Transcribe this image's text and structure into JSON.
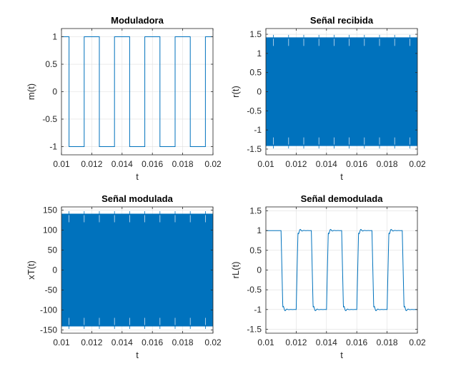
{
  "chart_data": [
    {
      "type": "line",
      "title": "Moduladora",
      "xlabel": "t",
      "ylabel": "m(t)",
      "xlim": [
        0.01,
        0.02
      ],
      "ylim": [
        -1.15,
        1.15
      ],
      "xticks": [
        0.01,
        0.012,
        0.014,
        0.016,
        0.018,
        0.02
      ],
      "xtick_labels": [
        "0.01",
        "0.012",
        "0.014",
        "0.016",
        "0.018",
        "0.02"
      ],
      "yticks": [
        -1,
        -0.5,
        0,
        0.5,
        1
      ],
      "ytick_labels": [
        "-1",
        "-0.5",
        "0",
        "0.5",
        "1"
      ],
      "grid": true,
      "color": "#0072BD",
      "series": [
        {
          "x": [
            0.01,
            0.0105,
            0.0105,
            0.0115,
            0.0115,
            0.0125,
            0.0125,
            0.0135,
            0.0135,
            0.0145,
            0.0145,
            0.0155,
            0.0155,
            0.0165,
            0.0165,
            0.0175,
            0.0175,
            0.0185,
            0.0185,
            0.0195,
            0.0195,
            0.02
          ],
          "y": [
            1,
            1,
            -1,
            -1,
            1,
            1,
            -1,
            -1,
            1,
            1,
            -1,
            -1,
            1,
            1,
            -1,
            -1,
            1,
            1,
            -1,
            -1,
            1,
            1
          ]
        }
      ]
    },
    {
      "type": "line",
      "title": "Señal recibida",
      "xlabel": "t",
      "ylabel": "r(t)",
      "xlim": [
        0.01,
        0.02
      ],
      "ylim": [
        -1.65,
        1.65
      ],
      "xticks": [
        0.01,
        0.012,
        0.014,
        0.016,
        0.018,
        0.02
      ],
      "xtick_labels": [
        "0.01",
        "0.012",
        "0.014",
        "0.016",
        "0.018",
        "0.02"
      ],
      "yticks": [
        -1.5,
        -1,
        -0.5,
        0,
        0.5,
        1,
        1.5
      ],
      "ytick_labels": [
        "-1.5",
        "-1",
        "-0.5",
        "0",
        "0.5",
        "1",
        "1.5"
      ],
      "grid": true,
      "color": "#0072BD",
      "envelope": {
        "upper": 1.42,
        "lower": -1.42
      },
      "series": [
        {
          "x": [
            0.01,
            0.0105,
            0.0115,
            0.0125,
            0.0135,
            0.0145,
            0.0155,
            0.0165,
            0.0175,
            0.0185,
            0.0195,
            0.02
          ],
          "y_max": [
            1.42,
            1.42,
            1.42,
            1.42,
            1.42,
            1.42,
            1.42,
            1.42,
            1.42,
            1.42,
            1.42,
            1.42
          ],
          "y_min": [
            -1.42,
            -1.42,
            -1.42,
            -1.42,
            -1.42,
            -1.42,
            -1.42,
            -1.42,
            -1.42,
            -1.42,
            -1.42,
            -1.42
          ]
        }
      ]
    },
    {
      "type": "line",
      "title": "Señal modulada",
      "xlabel": "t",
      "ylabel": "xT(t)",
      "xlim": [
        0.01,
        0.02
      ],
      "ylim": [
        -158,
        158
      ],
      "xticks": [
        0.01,
        0.012,
        0.014,
        0.016,
        0.018,
        0.02
      ],
      "xtick_labels": [
        "0.01",
        "0.012",
        "0.014",
        "0.016",
        "0.018",
        "0.02"
      ],
      "yticks": [
        -150,
        -100,
        -50,
        0,
        50,
        100,
        150
      ],
      "ytick_labels": [
        "-150",
        "-100",
        "-50",
        "0",
        "50",
        "100",
        "150"
      ],
      "grid": true,
      "color": "#0072BD",
      "envelope": {
        "upper": 141,
        "lower": -141
      },
      "series": [
        {
          "x": [
            0.01,
            0.0105,
            0.0115,
            0.0125,
            0.0135,
            0.0145,
            0.0155,
            0.0165,
            0.0175,
            0.0185,
            0.0195,
            0.02
          ],
          "y_max": [
            141,
            141,
            141,
            141,
            141,
            141,
            141,
            141,
            141,
            141,
            141,
            141
          ],
          "y_min": [
            -141,
            -141,
            -141,
            -141,
            -141,
            -141,
            -141,
            -141,
            -141,
            -141,
            -141,
            -141
          ]
        }
      ]
    },
    {
      "type": "line",
      "title": "Señal demodulada",
      "xlabel": "t",
      "ylabel": "rL(t)",
      "xlim": [
        0.01,
        0.02
      ],
      "ylim": [
        -1.6,
        1.6
      ],
      "xticks": [
        0.01,
        0.012,
        0.014,
        0.016,
        0.018,
        0.02
      ],
      "xtick_labels": [
        "0.01",
        "0.012",
        "0.014",
        "0.016",
        "0.018",
        "0.02"
      ],
      "yticks": [
        -1.5,
        -1,
        -0.5,
        0,
        0.5,
        1,
        1.5
      ],
      "ytick_labels": [
        "-1.5",
        "-1",
        "-0.5",
        "0",
        "0.5",
        "1",
        "1.5"
      ],
      "grid": true,
      "color": "#0072BD",
      "series": [
        {
          "x": [
            0.01,
            0.0105,
            0.011,
            0.0115,
            0.012,
            0.0125,
            0.013,
            0.0135,
            0.014,
            0.0145,
            0.015,
            0.0155,
            0.016,
            0.0165,
            0.017,
            0.0175,
            0.018,
            0.0185,
            0.019,
            0.0195,
            0.02
          ],
          "y": [
            1,
            1,
            -1,
            -1,
            1,
            1,
            -1,
            -1,
            1,
            1,
            -1,
            -1,
            1,
            1,
            -1,
            -1,
            1,
            1,
            -1,
            -1,
            1
          ],
          "transition_overshoot": 1.3
        }
      ]
    }
  ]
}
